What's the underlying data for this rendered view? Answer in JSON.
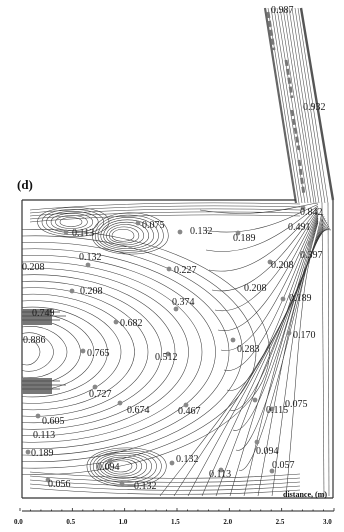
{
  "figure": {
    "panel_label": "(d)",
    "x_axis_title": "distance, (m)",
    "x_ticks": [
      "0.0",
      "0.5",
      "1.0",
      "1.5",
      "2.0",
      "2.5",
      "3.0"
    ],
    "contour_labels": [
      "0.987",
      "0.932",
      "0.842",
      "0.491",
      "0.397",
      "0.075",
      "0.132",
      "0.113",
      "0.189",
      "0.132",
      "0.208",
      "0.227",
      "0.208",
      "0.208",
      "0.208",
      "0.189",
      "0.374",
      "0.749",
      "0.682",
      "0.170",
      "0.886",
      "0.765",
      "0.512",
      "0.283",
      "0.727",
      "0.674",
      "0.467",
      "0.115",
      "0.075",
      "0.605",
      "0.113",
      "0.189",
      "0.094",
      "0.132",
      "0.094",
      "0.113",
      "0.057",
      "0.056",
      "0.132"
    ]
  }
}
